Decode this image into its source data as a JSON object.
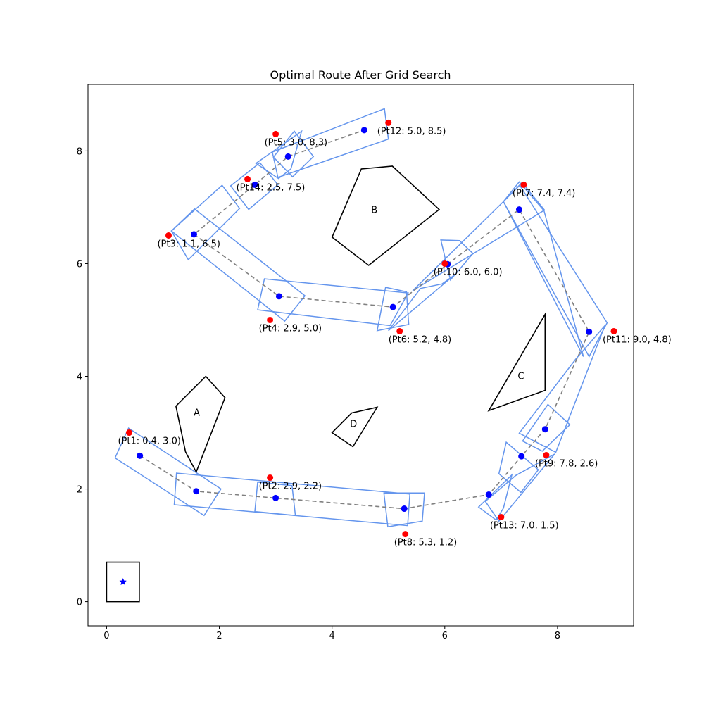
{
  "chart_data": {
    "type": "scatter",
    "title": "Optimal Route After Grid Search",
    "xlim": [
      -0.33,
      9.35
    ],
    "ylim": [
      -0.43,
      9.18
    ],
    "xticks": [
      0,
      2,
      4,
      6,
      8
    ],
    "yticks": [
      0,
      2,
      4,
      6,
      8
    ],
    "grid": false,
    "colors": {
      "target_point": "#ff0000",
      "route_point": "#0000ff",
      "corridor": "#6495ed",
      "route_line": "#808080",
      "obstacle": "#000000",
      "depot_marker": "#0000ff"
    },
    "target_points": [
      {
        "label": "(Pt1: 0.4, 3.0)",
        "x": 0.4,
        "y": 3.0
      },
      {
        "label": "(Pt2: 2.9, 2.2)",
        "x": 2.9,
        "y": 2.2
      },
      {
        "label": "(Pt3: 1.1, 6.5)",
        "x": 1.1,
        "y": 6.5
      },
      {
        "label": "(Pt4: 2.9, 5.0)",
        "x": 2.9,
        "y": 5.0
      },
      {
        "label": "(Pt5: 3.0, 8.3)",
        "x": 3.0,
        "y": 8.3
      },
      {
        "label": "(Pt6: 5.2, 4.8)",
        "x": 5.2,
        "y": 4.8
      },
      {
        "label": "(Pt7: 7.4, 7.4)",
        "x": 7.4,
        "y": 7.4
      },
      {
        "label": "(Pt8: 5.3, 1.2)",
        "x": 5.3,
        "y": 1.2
      },
      {
        "label": "(Pt9: 7.8, 2.6)",
        "x": 7.8,
        "y": 2.6
      },
      {
        "label": "(Pt10: 6.0, 6.0)",
        "x": 6.0,
        "y": 6.0
      },
      {
        "label": "(Pt11: 9.0, 4.8)",
        "x": 9.0,
        "y": 4.8
      },
      {
        "label": "(Pt12: 5.0, 8.5)",
        "x": 5.0,
        "y": 8.5
      },
      {
        "label": "(Pt13: 7.0, 1.5)",
        "x": 7.0,
        "y": 1.5
      },
      {
        "label": "(Pt14: 2.5, 7.5)",
        "x": 2.5,
        "y": 7.5
      }
    ],
    "route": [
      [
        0.59,
        2.59
      ],
      [
        1.59,
        1.96
      ],
      [
        3.0,
        1.84
      ],
      [
        5.28,
        1.65
      ],
      [
        6.78,
        1.9
      ],
      [
        7.36,
        2.58
      ],
      [
        7.78,
        3.06
      ],
      [
        8.56,
        4.79
      ],
      [
        7.32,
        6.96
      ],
      [
        6.05,
        5.99
      ],
      [
        5.08,
        5.23
      ],
      [
        3.06,
        5.42
      ],
      [
        1.55,
        6.52
      ],
      [
        2.63,
        7.4
      ],
      [
        3.22,
        7.9
      ],
      [
        4.57,
        8.37
      ]
    ],
    "corridors": [
      [
        [
          0.15,
          2.55
        ],
        [
          0.39,
          3.08
        ],
        [
          2.03,
          2.0
        ],
        [
          1.73,
          1.53
        ]
      ],
      [
        [
          1.24,
          2.28
        ],
        [
          1.2,
          1.72
        ],
        [
          5.34,
          1.35
        ],
        [
          5.38,
          1.91
        ]
      ],
      [
        [
          2.63,
          1.6
        ],
        [
          3.35,
          1.53
        ],
        [
          3.29,
          2.06
        ],
        [
          2.68,
          2.12
        ]
      ],
      [
        [
          4.92,
          1.93
        ],
        [
          4.99,
          1.33
        ],
        [
          5.6,
          1.43
        ],
        [
          5.64,
          1.93
        ]
      ],
      [
        [
          6.6,
          1.68
        ],
        [
          6.91,
          1.45
        ],
        [
          7.04,
          1.66
        ],
        [
          7.19,
          2.25
        ]
      ],
      [
        [
          6.72,
          1.78
        ],
        [
          7.26,
          2.24
        ],
        [
          7.95,
          2.62
        ],
        [
          6.96,
          1.43
        ]
      ],
      [
        [
          6.96,
          2.27
        ],
        [
          7.35,
          1.94
        ],
        [
          7.66,
          2.34
        ],
        [
          7.09,
          2.83
        ]
      ],
      [
        [
          7.38,
          2.85
        ],
        [
          7.83,
          3.5
        ],
        [
          8.22,
          3.14
        ],
        [
          7.73,
          2.67
        ]
      ],
      [
        [
          7.32,
          2.99
        ],
        [
          8.32,
          4.3
        ],
        [
          8.84,
          4.9
        ],
        [
          7.97,
          2.65
        ]
      ],
      [
        [
          8.56,
          4.35
        ],
        [
          8.88,
          4.95
        ],
        [
          7.33,
          7.39
        ],
        [
          7.04,
          7.1
        ]
      ],
      [
        [
          7.04,
          7.1
        ],
        [
          7.32,
          7.45
        ],
        [
          7.76,
          6.94
        ],
        [
          8.46,
          4.35
        ]
      ],
      [
        [
          7.04,
          7.1
        ],
        [
          7.37,
          7.44
        ],
        [
          7.77,
          6.95
        ],
        [
          5.43,
          5.52
        ]
      ],
      [
        [
          5.93,
          6.42
        ],
        [
          6.26,
          6.41
        ],
        [
          6.5,
          6.18
        ],
        [
          6.1,
          5.71
        ]
      ],
      [
        [
          5.57,
          5.56
        ],
        [
          5.95,
          5.64
        ],
        [
          6.16,
          5.79
        ],
        [
          5.0,
          4.81
        ]
      ],
      [
        [
          5.32,
          5.5
        ],
        [
          5.36,
          4.92
        ],
        [
          4.8,
          4.81
        ],
        [
          4.95,
          5.58
        ]
      ],
      [
        [
          2.8,
          5.73
        ],
        [
          2.68,
          5.18
        ],
        [
          5.03,
          4.9
        ],
        [
          5.35,
          5.48
        ]
      ],
      [
        [
          3.16,
          4.98
        ],
        [
          3.52,
          5.43
        ],
        [
          1.56,
          6.97
        ],
        [
          1.15,
          6.58
        ]
      ],
      [
        [
          1.15,
          6.58
        ],
        [
          1.45,
          6.07
        ],
        [
          2.36,
          6.98
        ],
        [
          2.05,
          7.39
        ]
      ],
      [
        [
          2.2,
          7.38
        ],
        [
          2.52,
          6.96
        ],
        [
          3.04,
          7.4
        ],
        [
          2.72,
          7.79
        ]
      ],
      [
        [
          2.65,
          7.78
        ],
        [
          3.05,
          7.51
        ],
        [
          3.27,
          7.68
        ],
        [
          3.46,
          8.35
        ]
      ],
      [
        [
          2.96,
          7.89
        ],
        [
          3.3,
          7.54
        ],
        [
          3.67,
          7.9
        ],
        [
          3.33,
          8.35
        ]
      ],
      [
        [
          2.94,
          7.98
        ],
        [
          4.93,
          8.75
        ],
        [
          5.0,
          8.21
        ],
        [
          3.04,
          7.53
        ]
      ]
    ],
    "obstacles": [
      {
        "label": "A",
        "label_x": 1.6,
        "label_y": 3.3,
        "points": [
          [
            1.23,
            3.47
          ],
          [
            1.76,
            4.0
          ],
          [
            2.1,
            3.62
          ],
          [
            1.59,
            2.3
          ],
          [
            1.4,
            2.66
          ]
        ]
      },
      {
        "label": "B",
        "label_x": 4.75,
        "label_y": 6.9,
        "points": [
          [
            4.0,
            6.47
          ],
          [
            4.52,
            7.68
          ],
          [
            5.07,
            7.73
          ],
          [
            5.9,
            6.96
          ],
          [
            4.65,
            5.97
          ]
        ]
      },
      {
        "label": "C",
        "label_x": 7.35,
        "label_y": 3.95,
        "points": [
          [
            6.78,
            3.39
          ],
          [
            7.78,
            5.1
          ],
          [
            7.78,
            3.75
          ]
        ]
      },
      {
        "label": "D",
        "label_x": 4.38,
        "label_y": 3.1,
        "points": [
          [
            4.0,
            3.0
          ],
          [
            4.35,
            3.35
          ],
          [
            4.8,
            3.45
          ],
          [
            4.37,
            2.75
          ]
        ]
      }
    ],
    "depot_box": [
      [
        0.0,
        0.0
      ],
      [
        0.58,
        0.0
      ],
      [
        0.58,
        0.7
      ],
      [
        0.0,
        0.7
      ]
    ],
    "depot_marker": {
      "x": 0.29,
      "y": 0.35
    }
  }
}
